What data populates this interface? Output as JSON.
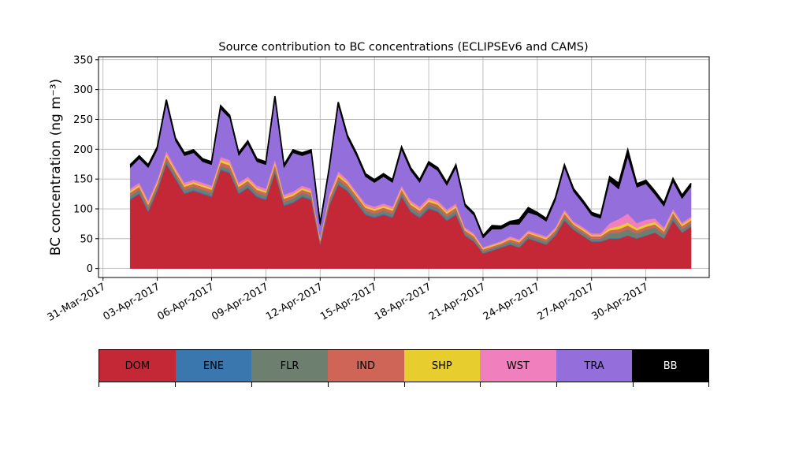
{
  "chart_data": {
    "type": "area",
    "title": "Source contribution to BC concentrations (ECLIPSEv6 and CAMS)",
    "ylabel": "BC concentration (ng m⁻³)",
    "xlabel": "",
    "ylim": [
      -15,
      355
    ],
    "y_ticks": [
      0,
      50,
      100,
      150,
      200,
      250,
      300,
      350
    ],
    "xlim": [
      "2017-03-30T18:00",
      "2017-05-03T12:00"
    ],
    "x_ticks": [
      "31-Mar-2017",
      "03-Apr-2017",
      "06-Apr-2017",
      "09-Apr-2017",
      "12-Apr-2017",
      "15-Apr-2017",
      "18-Apr-2017",
      "21-Apr-2017",
      "24-Apr-2017",
      "27-Apr-2017",
      "30-Apr-2017"
    ],
    "x_tick_dates": [
      "2017-03-31",
      "2017-04-03",
      "2017-04-06",
      "2017-04-09",
      "2017-04-12",
      "2017-04-15",
      "2017-04-18",
      "2017-04-21",
      "2017-04-24",
      "2017-04-27",
      "2017-04-30"
    ],
    "grid": true,
    "stacked": true,
    "x": [
      "2017-04-01T12:00",
      "2017-04-02T00:00",
      "2017-04-02T12:00",
      "2017-04-03T00:00",
      "2017-04-03T12:00",
      "2017-04-04T00:00",
      "2017-04-04T12:00",
      "2017-04-05T00:00",
      "2017-04-05T12:00",
      "2017-04-06T00:00",
      "2017-04-06T12:00",
      "2017-04-07T00:00",
      "2017-04-07T12:00",
      "2017-04-08T00:00",
      "2017-04-08T12:00",
      "2017-04-09T00:00",
      "2017-04-09T12:00",
      "2017-04-10T00:00",
      "2017-04-10T12:00",
      "2017-04-11T00:00",
      "2017-04-11T12:00",
      "2017-04-12T00:00",
      "2017-04-12T12:00",
      "2017-04-13T00:00",
      "2017-04-13T12:00",
      "2017-04-14T00:00",
      "2017-04-14T12:00",
      "2017-04-15T00:00",
      "2017-04-15T12:00",
      "2017-04-16T00:00",
      "2017-04-16T12:00",
      "2017-04-17T00:00",
      "2017-04-17T12:00",
      "2017-04-18T00:00",
      "2017-04-18T12:00",
      "2017-04-19T00:00",
      "2017-04-19T12:00",
      "2017-04-20T00:00",
      "2017-04-20T12:00",
      "2017-04-21T00:00",
      "2017-04-21T12:00",
      "2017-04-22T00:00",
      "2017-04-22T12:00",
      "2017-04-23T00:00",
      "2017-04-23T12:00",
      "2017-04-24T00:00",
      "2017-04-24T12:00",
      "2017-04-25T00:00",
      "2017-04-25T12:00",
      "2017-04-26T00:00",
      "2017-04-26T12:00",
      "2017-04-27T00:00",
      "2017-04-27T12:00",
      "2017-04-28T00:00",
      "2017-04-28T12:00",
      "2017-04-29T00:00",
      "2017-04-29T12:00",
      "2017-04-30T00:00",
      "2017-04-30T12:00",
      "2017-05-01T00:00",
      "2017-05-01T12:00",
      "2017-05-02T00:00",
      "2017-05-02T12:00"
    ],
    "series": [
      {
        "name": "DOM",
        "color": "#c42837",
        "values": [
          115,
          125,
          95,
          130,
          175,
          150,
          125,
          130,
          125,
          120,
          165,
          160,
          125,
          135,
          120,
          115,
          160,
          105,
          110,
          120,
          115,
          40,
          105,
          140,
          130,
          110,
          90,
          85,
          90,
          85,
          120,
          95,
          85,
          100,
          95,
          80,
          90,
          55,
          45,
          25,
          30,
          35,
          40,
          35,
          50,
          45,
          40,
          55,
          80,
          65,
          55,
          45,
          45,
          50,
          50,
          55,
          50,
          55,
          60,
          50,
          80,
          60,
          70
        ]
      },
      {
        "name": "ENE",
        "color": "#3a77ae",
        "values": [
          2,
          2,
          2,
          2,
          2,
          2,
          2,
          2,
          2,
          2,
          2,
          2,
          2,
          2,
          2,
          2,
          2,
          2,
          2,
          2,
          2,
          1,
          2,
          2,
          2,
          2,
          2,
          2,
          2,
          2,
          2,
          2,
          2,
          2,
          2,
          2,
          2,
          1,
          1,
          1,
          1,
          1,
          1,
          1,
          1,
          1,
          1,
          1,
          2,
          1,
          1,
          1,
          1,
          1,
          1,
          1,
          1,
          1,
          1,
          1,
          2,
          1,
          1
        ]
      },
      {
        "name": "FLR",
        "color": "#6d8070",
        "values": [
          5,
          5,
          5,
          5,
          5,
          5,
          5,
          5,
          5,
          5,
          5,
          5,
          5,
          5,
          5,
          5,
          6,
          5,
          5,
          5,
          5,
          3,
          5,
          6,
          5,
          5,
          5,
          5,
          5,
          5,
          5,
          5,
          5,
          5,
          5,
          5,
          5,
          4,
          4,
          3,
          3,
          3,
          4,
          4,
          4,
          4,
          4,
          4,
          5,
          4,
          4,
          4,
          4,
          8,
          9,
          10,
          8,
          9,
          8,
          6,
          6,
          5,
          5
        ]
      },
      {
        "name": "IND",
        "color": "#cf6556",
        "values": [
          5,
          5,
          5,
          5,
          6,
          5,
          5,
          5,
          5,
          5,
          6,
          6,
          5,
          5,
          5,
          5,
          6,
          5,
          5,
          5,
          5,
          3,
          5,
          6,
          5,
          5,
          5,
          5,
          5,
          5,
          5,
          5,
          5,
          5,
          5,
          5,
          5,
          4,
          4,
          3,
          3,
          3,
          4,
          4,
          4,
          4,
          4,
          4,
          5,
          4,
          4,
          4,
          4,
          5,
          6,
          6,
          5,
          5,
          5,
          5,
          5,
          5,
          5
        ]
      },
      {
        "name": "SHP",
        "color": "#e7ce2e",
        "values": [
          3,
          3,
          3,
          3,
          4,
          3,
          3,
          3,
          3,
          3,
          4,
          4,
          3,
          3,
          3,
          3,
          4,
          3,
          3,
          3,
          3,
          2,
          3,
          4,
          3,
          3,
          3,
          3,
          3,
          3,
          3,
          3,
          3,
          3,
          3,
          3,
          3,
          2,
          2,
          2,
          2,
          2,
          2,
          2,
          2,
          2,
          2,
          2,
          3,
          2,
          3,
          2,
          2,
          4,
          5,
          5,
          4,
          4,
          4,
          3,
          3,
          3,
          3
        ]
      },
      {
        "name": "WST",
        "color": "#f07fbe",
        "values": [
          4,
          4,
          4,
          4,
          5,
          4,
          4,
          4,
          4,
          4,
          5,
          5,
          4,
          4,
          4,
          4,
          5,
          4,
          4,
          4,
          4,
          3,
          4,
          5,
          4,
          4,
          4,
          4,
          4,
          4,
          4,
          4,
          4,
          4,
          4,
          4,
          4,
          3,
          3,
          2,
          2,
          2,
          3,
          3,
          3,
          3,
          3,
          3,
          4,
          3,
          3,
          3,
          3,
          8,
          12,
          15,
          8,
          8,
          6,
          4,
          4,
          3,
          3
        ]
      },
      {
        "name": "TRA",
        "color": "#946fdc",
        "values": [
          35,
          40,
          55,
          50,
          80,
          45,
          45,
          45,
          35,
          35,
          80,
          70,
          45,
          55,
          40,
          40,
          100,
          45,
          65,
          50,
          60,
          20,
          40,
          110,
          70,
          60,
          45,
          40,
          45,
          40,
          60,
          50,
          40,
          55,
          50,
          40,
          60,
          35,
          30,
          15,
          25,
          20,
          20,
          25,
          30,
          30,
          25,
          45,
          70,
          50,
          40,
          30,
          25,
          70,
          50,
          95,
          60,
          60,
          40,
          35,
          45,
          40,
          50
        ]
      },
      {
        "name": "BB",
        "color": "#000000",
        "values": [
          5,
          5,
          5,
          5,
          6,
          5,
          5,
          5,
          5,
          5,
          6,
          5,
          5,
          5,
          5,
          5,
          6,
          5,
          5,
          5,
          5,
          3,
          5,
          6,
          5,
          5,
          5,
          5,
          5,
          5,
          5,
          5,
          5,
          5,
          5,
          5,
          5,
          4,
          4,
          4,
          6,
          5,
          5,
          8,
          8,
          5,
          5,
          5,
          5,
          5,
          5,
          5,
          5,
          8,
          10,
          12,
          6,
          6,
          6,
          6,
          6,
          6,
          6
        ]
      }
    ]
  },
  "legend": {
    "placement": "bottom",
    "items": [
      {
        "label": "DOM",
        "color": "#c42837",
        "text_color": "#000000"
      },
      {
        "label": "ENE",
        "color": "#3a77ae",
        "text_color": "#000000"
      },
      {
        "label": "FLR",
        "color": "#6d8070",
        "text_color": "#000000"
      },
      {
        "label": "IND",
        "color": "#cf6556",
        "text_color": "#000000"
      },
      {
        "label": "SHP",
        "color": "#e7ce2e",
        "text_color": "#000000"
      },
      {
        "label": "WST",
        "color": "#f07fbe",
        "text_color": "#000000"
      },
      {
        "label": "TRA",
        "color": "#946fdc",
        "text_color": "#000000"
      },
      {
        "label": "BB",
        "color": "#000000",
        "text_color": "#ffffff"
      }
    ]
  }
}
